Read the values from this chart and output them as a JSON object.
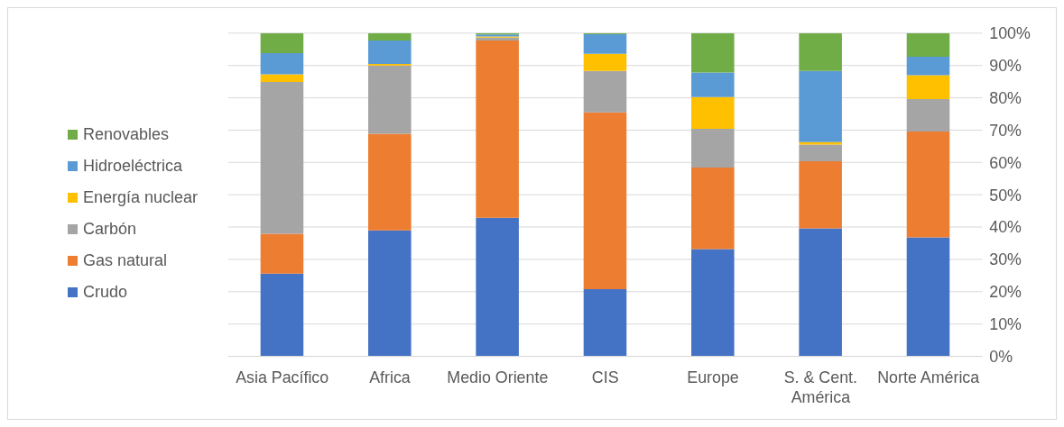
{
  "chart_data": {
    "type": "bar",
    "stacked": true,
    "categories": [
      "Asia Pacífico",
      "Africa",
      "Medio Oriente",
      "CIS",
      "Europe",
      "S. & Cent. América",
      "Norte América"
    ],
    "series": [
      {
        "name": "Crudo",
        "color": "#4472c4",
        "values": [
          25.6,
          39.0,
          42.9,
          20.8,
          33.2,
          39.6,
          36.8
        ]
      },
      {
        "name": "Gas natural",
        "color": "#ed7d31",
        "values": [
          12.3,
          29.9,
          54.8,
          54.7,
          25.2,
          20.8,
          32.8
        ]
      },
      {
        "name": "Carbón",
        "color": "#a5a5a5",
        "values": [
          47.0,
          21.1,
          0.9,
          12.8,
          12.0,
          5.1,
          10.0
        ]
      },
      {
        "name": "Energía nuclear",
        "color": "#ffc000",
        "values": [
          2.4,
          0.5,
          0.4,
          5.3,
          9.8,
          0.8,
          7.4
        ]
      },
      {
        "name": "Hidroeléctrica",
        "color": "#5b9bd5",
        "values": [
          6.5,
          7.2,
          0.6,
          6.1,
          7.6,
          22.0,
          5.7
        ]
      },
      {
        "name": "Renovables",
        "color": "#70ad47",
        "values": [
          6.2,
          2.3,
          0.4,
          0.3,
          12.2,
          11.7,
          7.3
        ]
      }
    ],
    "ylim": [
      0,
      100
    ],
    "yticks": [
      {
        "value": 0,
        "label": "0%"
      },
      {
        "value": 10,
        "label": "10%"
      },
      {
        "value": 20,
        "label": "20%"
      },
      {
        "value": 30,
        "label": "30%"
      },
      {
        "value": 40,
        "label": "40%"
      },
      {
        "value": 50,
        "label": "50%"
      },
      {
        "value": 60,
        "label": "60%"
      },
      {
        "value": 70,
        "label": "70%"
      },
      {
        "value": 80,
        "label": "80%"
      },
      {
        "value": 90,
        "label": "90%"
      },
      {
        "value": 100,
        "label": "100%"
      }
    ],
    "grid": "y",
    "legend": "left"
  }
}
